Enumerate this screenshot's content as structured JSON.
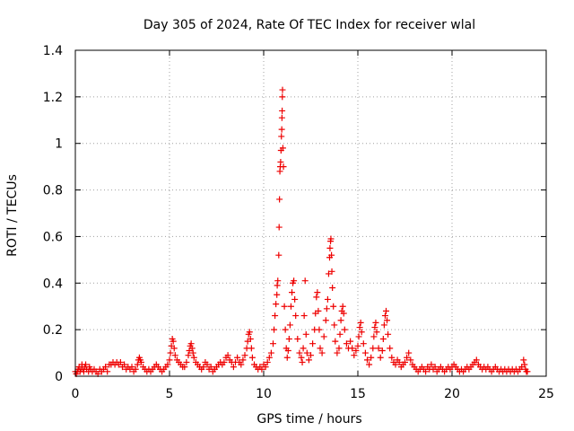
{
  "chart_data": {
    "type": "scatter",
    "title": "Day 305 of 2024, Rate Of TEC Index for receiver wlal",
    "xlabel": "GPS time / hours",
    "ylabel": "ROTI / TECUs",
    "xlim": [
      0,
      25
    ],
    "ylim": [
      0,
      1.4
    ],
    "x_ticks": [
      0,
      5,
      10,
      15,
      20,
      25
    ],
    "x_tick_labels": [
      "0",
      "5",
      "10",
      "15",
      "20",
      "25"
    ],
    "y_ticks": [
      0,
      0.2,
      0.4,
      0.6,
      0.8,
      1.0,
      1.2,
      1.4
    ],
    "y_tick_labels": [
      "0",
      "0.2",
      "0.4",
      "0.6",
      "0.8",
      "1",
      "1.2",
      "1.4"
    ],
    "grid": true,
    "marker": "+",
    "series": [
      {
        "name": "ROTI",
        "color": "#ee0000",
        "points": [
          [
            0.0,
            0.02
          ],
          [
            0.05,
            0.01
          ],
          [
            0.1,
            0.02
          ],
          [
            0.15,
            0.03
          ],
          [
            0.2,
            0.04
          ],
          [
            0.25,
            0.02
          ],
          [
            0.3,
            0.03
          ],
          [
            0.35,
            0.05
          ],
          [
            0.4,
            0.03
          ],
          [
            0.45,
            0.02
          ],
          [
            0.5,
            0.04
          ],
          [
            0.55,
            0.05
          ],
          [
            0.6,
            0.03
          ],
          [
            0.7,
            0.02
          ],
          [
            0.75,
            0.04
          ],
          [
            0.8,
            0.03
          ],
          [
            0.9,
            0.02
          ],
          [
            1.0,
            0.03
          ],
          [
            1.1,
            0.02
          ],
          [
            1.2,
            0.01
          ],
          [
            1.3,
            0.03
          ],
          [
            1.4,
            0.02
          ],
          [
            1.5,
            0.03
          ],
          [
            1.6,
            0.04
          ],
          [
            1.7,
            0.02
          ],
          [
            1.8,
            0.05
          ],
          [
            1.9,
            0.05
          ],
          [
            2.0,
            0.06
          ],
          [
            2.1,
            0.05
          ],
          [
            2.2,
            0.06
          ],
          [
            2.3,
            0.05
          ],
          [
            2.4,
            0.06
          ],
          [
            2.5,
            0.04
          ],
          [
            2.6,
            0.05
          ],
          [
            2.7,
            0.03
          ],
          [
            2.8,
            0.04
          ],
          [
            2.9,
            0.03
          ],
          [
            3.0,
            0.04
          ],
          [
            3.1,
            0.02
          ],
          [
            3.2,
            0.03
          ],
          [
            3.3,
            0.05
          ],
          [
            3.35,
            0.07
          ],
          [
            3.4,
            0.08
          ],
          [
            3.45,
            0.07
          ],
          [
            3.5,
            0.06
          ],
          [
            3.6,
            0.04
          ],
          [
            3.7,
            0.03
          ],
          [
            3.8,
            0.02
          ],
          [
            3.9,
            0.03
          ],
          [
            4.0,
            0.02
          ],
          [
            4.1,
            0.03
          ],
          [
            4.2,
            0.04
          ],
          [
            4.3,
            0.05
          ],
          [
            4.4,
            0.04
          ],
          [
            4.5,
            0.03
          ],
          [
            4.6,
            0.02
          ],
          [
            4.7,
            0.03
          ],
          [
            4.8,
            0.04
          ],
          [
            4.9,
            0.05
          ],
          [
            5.0,
            0.07
          ],
          [
            5.05,
            0.1
          ],
          [
            5.1,
            0.13
          ],
          [
            5.15,
            0.16
          ],
          [
            5.2,
            0.15
          ],
          [
            5.25,
            0.12
          ],
          [
            5.3,
            0.09
          ],
          [
            5.4,
            0.07
          ],
          [
            5.5,
            0.06
          ],
          [
            5.6,
            0.05
          ],
          [
            5.7,
            0.04
          ],
          [
            5.8,
            0.04
          ],
          [
            5.9,
            0.06
          ],
          [
            6.0,
            0.09
          ],
          [
            6.05,
            0.11
          ],
          [
            6.1,
            0.13
          ],
          [
            6.15,
            0.14
          ],
          [
            6.2,
            0.12
          ],
          [
            6.25,
            0.1
          ],
          [
            6.3,
            0.08
          ],
          [
            6.4,
            0.06
          ],
          [
            6.5,
            0.05
          ],
          [
            6.6,
            0.04
          ],
          [
            6.7,
            0.03
          ],
          [
            6.8,
            0.04
          ],
          [
            6.9,
            0.06
          ],
          [
            7.0,
            0.05
          ],
          [
            7.1,
            0.03
          ],
          [
            7.2,
            0.04
          ],
          [
            7.3,
            0.02
          ],
          [
            7.4,
            0.03
          ],
          [
            7.5,
            0.04
          ],
          [
            7.6,
            0.05
          ],
          [
            7.7,
            0.06
          ],
          [
            7.8,
            0.05
          ],
          [
            7.9,
            0.06
          ],
          [
            8.0,
            0.08
          ],
          [
            8.1,
            0.09
          ],
          [
            8.2,
            0.07
          ],
          [
            8.3,
            0.06
          ],
          [
            8.4,
            0.04
          ],
          [
            8.5,
            0.06
          ],
          [
            8.6,
            0.08
          ],
          [
            8.7,
            0.06
          ],
          [
            8.8,
            0.05
          ],
          [
            8.9,
            0.07
          ],
          [
            9.0,
            0.09
          ],
          [
            9.1,
            0.12
          ],
          [
            9.15,
            0.15
          ],
          [
            9.2,
            0.18
          ],
          [
            9.25,
            0.19
          ],
          [
            9.3,
            0.16
          ],
          [
            9.35,
            0.12
          ],
          [
            9.4,
            0.08
          ],
          [
            9.5,
            0.05
          ],
          [
            9.6,
            0.04
          ],
          [
            9.7,
            0.03
          ],
          [
            9.8,
            0.04
          ],
          [
            9.9,
            0.03
          ],
          [
            10.0,
            0.05
          ],
          [
            10.1,
            0.04
          ],
          [
            10.2,
            0.06
          ],
          [
            10.3,
            0.08
          ],
          [
            10.4,
            0.1
          ],
          [
            10.5,
            0.14
          ],
          [
            10.55,
            0.2
          ],
          [
            10.6,
            0.26
          ],
          [
            10.65,
            0.31
          ],
          [
            10.7,
            0.35
          ],
          [
            10.72,
            0.39
          ],
          [
            10.75,
            0.41
          ],
          [
            10.8,
            0.52
          ],
          [
            10.82,
            0.64
          ],
          [
            10.84,
            0.76
          ],
          [
            10.86,
            0.88
          ],
          [
            10.88,
            0.9
          ],
          [
            10.9,
            0.92
          ],
          [
            10.92,
            0.97
          ],
          [
            10.94,
            1.03
          ],
          [
            10.96,
            1.06
          ],
          [
            10.97,
            1.11
          ],
          [
            10.98,
            1.14
          ],
          [
            10.99,
            1.2
          ],
          [
            11.0,
            1.23
          ],
          [
            11.02,
            0.98
          ],
          [
            11.05,
            0.9
          ],
          [
            11.1,
            0.3
          ],
          [
            11.15,
            0.2
          ],
          [
            11.2,
            0.12
          ],
          [
            11.25,
            0.08
          ],
          [
            11.3,
            0.11
          ],
          [
            11.35,
            0.16
          ],
          [
            11.4,
            0.22
          ],
          [
            11.45,
            0.3
          ],
          [
            11.5,
            0.36
          ],
          [
            11.55,
            0.4
          ],
          [
            11.6,
            0.41
          ],
          [
            11.65,
            0.33
          ],
          [
            11.7,
            0.26
          ],
          [
            11.8,
            0.16
          ],
          [
            11.9,
            0.1
          ],
          [
            12.0,
            0.08
          ],
          [
            12.05,
            0.06
          ],
          [
            12.1,
            0.12
          ],
          [
            12.15,
            0.26
          ],
          [
            12.2,
            0.41
          ],
          [
            12.25,
            0.18
          ],
          [
            12.3,
            0.1
          ],
          [
            12.4,
            0.07
          ],
          [
            12.5,
            0.09
          ],
          [
            12.6,
            0.14
          ],
          [
            12.7,
            0.2
          ],
          [
            12.75,
            0.27
          ],
          [
            12.8,
            0.34
          ],
          [
            12.85,
            0.36
          ],
          [
            12.9,
            0.28
          ],
          [
            12.95,
            0.2
          ],
          [
            13.0,
            0.12
          ],
          [
            13.1,
            0.1
          ],
          [
            13.2,
            0.17
          ],
          [
            13.3,
            0.24
          ],
          [
            13.35,
            0.29
          ],
          [
            13.4,
            0.33
          ],
          [
            13.45,
            0.44
          ],
          [
            13.5,
            0.51
          ],
          [
            13.52,
            0.55
          ],
          [
            13.55,
            0.58
          ],
          [
            13.57,
            0.59
          ],
          [
            13.6,
            0.52
          ],
          [
            13.62,
            0.45
          ],
          [
            13.65,
            0.38
          ],
          [
            13.7,
            0.3
          ],
          [
            13.75,
            0.22
          ],
          [
            13.8,
            0.15
          ],
          [
            13.9,
            0.1
          ],
          [
            14.0,
            0.12
          ],
          [
            14.05,
            0.18
          ],
          [
            14.1,
            0.24
          ],
          [
            14.15,
            0.28
          ],
          [
            14.2,
            0.3
          ],
          [
            14.25,
            0.27
          ],
          [
            14.3,
            0.2
          ],
          [
            14.4,
            0.14
          ],
          [
            14.5,
            0.12
          ],
          [
            14.6,
            0.15
          ],
          [
            14.7,
            0.12
          ],
          [
            14.8,
            0.09
          ],
          [
            14.9,
            0.11
          ],
          [
            15.0,
            0.13
          ],
          [
            15.05,
            0.17
          ],
          [
            15.1,
            0.21
          ],
          [
            15.15,
            0.23
          ],
          [
            15.2,
            0.19
          ],
          [
            15.3,
            0.14
          ],
          [
            15.4,
            0.1
          ],
          [
            15.5,
            0.07
          ],
          [
            15.6,
            0.05
          ],
          [
            15.7,
            0.08
          ],
          [
            15.8,
            0.12
          ],
          [
            15.85,
            0.17
          ],
          [
            15.9,
            0.21
          ],
          [
            15.95,
            0.23
          ],
          [
            16.0,
            0.19
          ],
          [
            16.1,
            0.12
          ],
          [
            16.2,
            0.08
          ],
          [
            16.3,
            0.11
          ],
          [
            16.35,
            0.16
          ],
          [
            16.4,
            0.22
          ],
          [
            16.45,
            0.26
          ],
          [
            16.5,
            0.28
          ],
          [
            16.55,
            0.24
          ],
          [
            16.6,
            0.18
          ],
          [
            16.7,
            0.12
          ],
          [
            16.8,
            0.08
          ],
          [
            16.9,
            0.06
          ],
          [
            17.0,
            0.05
          ],
          [
            17.1,
            0.07
          ],
          [
            17.2,
            0.06
          ],
          [
            17.3,
            0.04
          ],
          [
            17.4,
            0.05
          ],
          [
            17.5,
            0.06
          ],
          [
            17.6,
            0.08
          ],
          [
            17.7,
            0.1
          ],
          [
            17.8,
            0.07
          ],
          [
            17.9,
            0.05
          ],
          [
            18.0,
            0.04
          ],
          [
            18.1,
            0.03
          ],
          [
            18.2,
            0.02
          ],
          [
            18.3,
            0.03
          ],
          [
            18.4,
            0.04
          ],
          [
            18.5,
            0.03
          ],
          [
            18.6,
            0.02
          ],
          [
            18.7,
            0.04
          ],
          [
            18.8,
            0.03
          ],
          [
            18.9,
            0.05
          ],
          [
            19.0,
            0.03
          ],
          [
            19.1,
            0.04
          ],
          [
            19.2,
            0.02
          ],
          [
            19.3,
            0.03
          ],
          [
            19.4,
            0.04
          ],
          [
            19.5,
            0.03
          ],
          [
            19.6,
            0.02
          ],
          [
            19.7,
            0.03
          ],
          [
            19.8,
            0.04
          ],
          [
            19.9,
            0.03
          ],
          [
            20.0,
            0.04
          ],
          [
            20.1,
            0.05
          ],
          [
            20.2,
            0.04
          ],
          [
            20.3,
            0.03
          ],
          [
            20.4,
            0.02
          ],
          [
            20.5,
            0.03
          ],
          [
            20.6,
            0.02
          ],
          [
            20.7,
            0.03
          ],
          [
            20.8,
            0.04
          ],
          [
            20.9,
            0.03
          ],
          [
            21.0,
            0.04
          ],
          [
            21.1,
            0.05
          ],
          [
            21.2,
            0.06
          ],
          [
            21.3,
            0.07
          ],
          [
            21.4,
            0.05
          ],
          [
            21.5,
            0.04
          ],
          [
            21.6,
            0.03
          ],
          [
            21.7,
            0.04
          ],
          [
            21.8,
            0.03
          ],
          [
            21.9,
            0.04
          ],
          [
            22.0,
            0.03
          ],
          [
            22.1,
            0.02
          ],
          [
            22.2,
            0.03
          ],
          [
            22.3,
            0.04
          ],
          [
            22.4,
            0.03
          ],
          [
            22.5,
            0.02
          ],
          [
            22.6,
            0.03
          ],
          [
            22.7,
            0.02
          ],
          [
            22.8,
            0.03
          ],
          [
            22.9,
            0.02
          ],
          [
            23.0,
            0.03
          ],
          [
            23.1,
            0.02
          ],
          [
            23.2,
            0.03
          ],
          [
            23.3,
            0.02
          ],
          [
            23.4,
            0.03
          ],
          [
            23.5,
            0.02
          ],
          [
            23.6,
            0.03
          ],
          [
            23.7,
            0.04
          ],
          [
            23.8,
            0.07
          ],
          [
            23.85,
            0.05
          ],
          [
            23.9,
            0.03
          ],
          [
            23.95,
            0.02
          ],
          [
            24.0,
            0.02
          ]
        ]
      }
    ]
  }
}
